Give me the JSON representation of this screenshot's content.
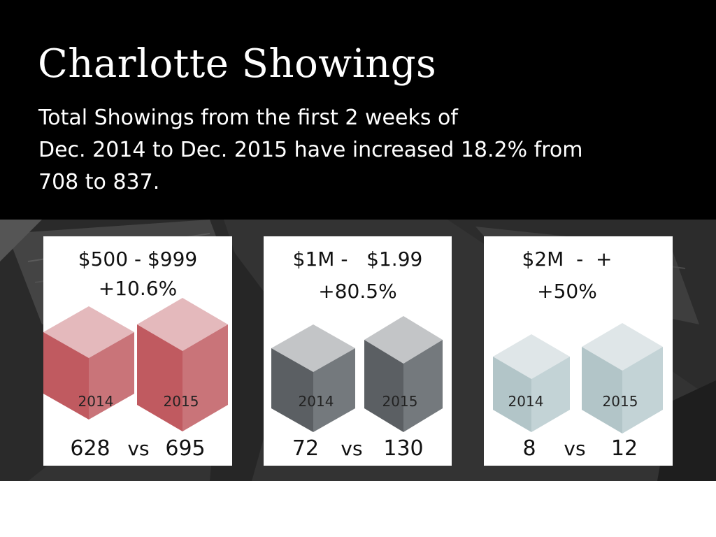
{
  "header": {
    "title": "Charlotte Showings",
    "subtitle_lines": [
      "Total Showings from the first 2 weeks of",
      "Dec. 2014 to Dec. 2015 have increased 18.2% from",
      "708 to 837."
    ]
  },
  "cards": [
    {
      "range": "$500 - $999",
      "change": "+10.6%",
      "year_a": "2014",
      "year_b": "2015",
      "value_a": "628",
      "vs": "vs",
      "value_b": "695",
      "colors": {
        "top": "#e4b9bc",
        "left": "#c05a60",
        "right": "#c97479"
      }
    },
    {
      "range": "$1M -   $1.99",
      "change": "+80.5%",
      "year_a": "2014",
      "year_b": "2015",
      "value_a": "72",
      "vs": "vs",
      "value_b": "130",
      "colors": {
        "top": "#c3c5c7",
        "left": "#5b5f63",
        "right": "#74797d"
      }
    },
    {
      "range": "$2M  -  +",
      "change": "+50%",
      "year_a": "2014",
      "year_b": "2015",
      "value_a": "8",
      "vs": "vs",
      "value_b": "12",
      "colors": {
        "top": "#dfe6e8",
        "left": "#b2c5c8",
        "right": "#c3d3d6"
      }
    }
  ]
}
